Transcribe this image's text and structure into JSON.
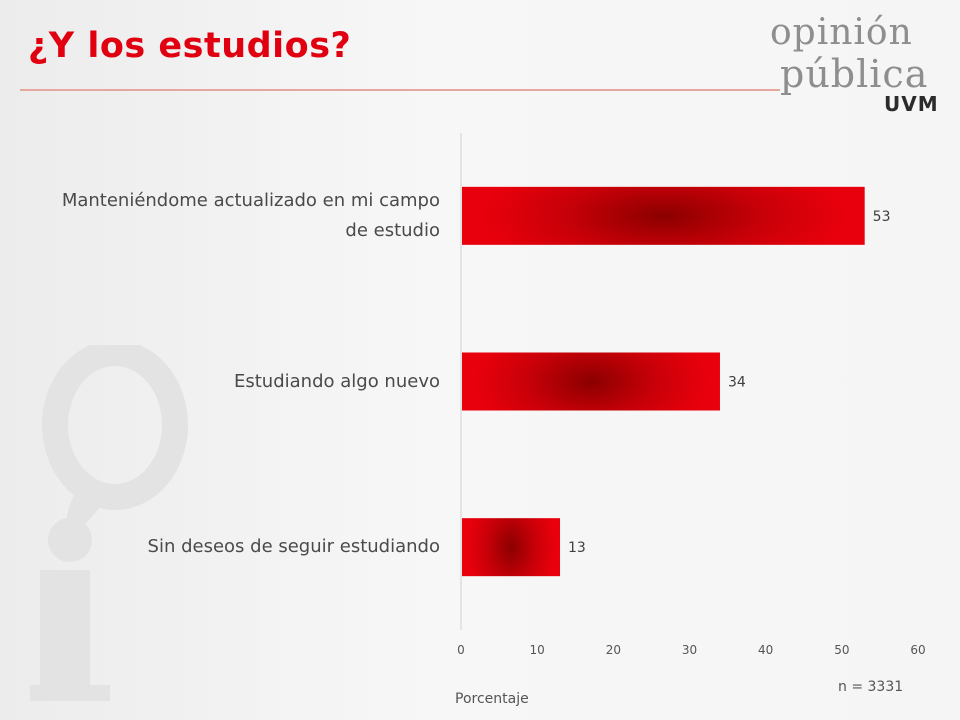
{
  "title": "¿Y los estudios?",
  "logo": {
    "line1": "opinión",
    "line2": "pública",
    "line3": "UVM"
  },
  "n_note": "n = 3331",
  "colors": {
    "title": "#e0000f",
    "bar_edge": "#e8000c",
    "bar_center": "#8b0000",
    "axis": "#d0d0d0"
  },
  "chart_data": {
    "type": "bar",
    "orientation": "horizontal",
    "categories": [
      [
        "Manteniéndome actualizado en mi campo",
        "de estudio"
      ],
      [
        "Estudiando algo nuevo"
      ],
      [
        "Sin deseos de seguir estudiando"
      ]
    ],
    "values": [
      53,
      34,
      13
    ],
    "xlabel": "Porcentaje",
    "xlim": [
      0,
      60
    ],
    "xticks": [
      0,
      10,
      20,
      30,
      40,
      50,
      60
    ],
    "data_labels": true,
    "grid": false
  }
}
